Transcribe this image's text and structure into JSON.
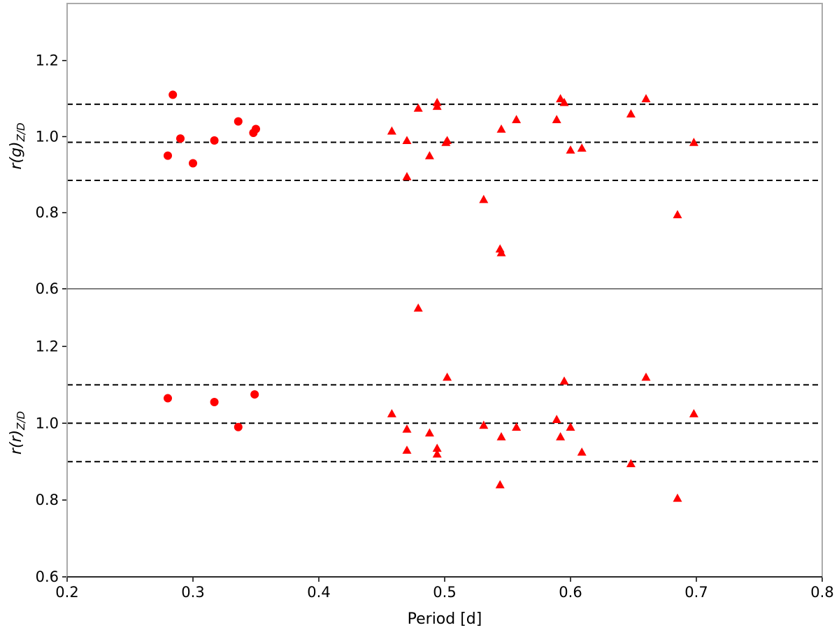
{
  "chart_data": [
    {
      "type": "scatter",
      "panel": "top",
      "xlabel": "",
      "ylabel": "r(g)",
      "ylabel_subscript": "Z/D",
      "xlim": [
        0.2,
        0.8
      ],
      "ylim": [
        0.6,
        1.35
      ],
      "yticks": [
        0.6,
        0.8,
        1.0,
        1.2
      ],
      "yticklabels": [
        "0.6",
        "0.8",
        "1.0",
        "1.2"
      ],
      "grid": false,
      "hlines": [
        0.885,
        0.985,
        1.085
      ],
      "color": "#ff0000",
      "series": [
        {
          "marker": "circle",
          "points": [
            [
              0.28,
              0.95
            ],
            [
              0.284,
              1.11
            ],
            [
              0.29,
              0.995
            ],
            [
              0.3,
              0.93
            ],
            [
              0.317,
              0.99
            ],
            [
              0.336,
              1.04
            ],
            [
              0.348,
              1.01
            ],
            [
              0.35,
              1.02
            ]
          ]
        },
        {
          "marker": "triangle",
          "points": [
            [
              0.458,
              1.015
            ],
            [
              0.47,
              0.99
            ],
            [
              0.47,
              0.895
            ],
            [
              0.479,
              1.075
            ],
            [
              0.488,
              0.95
            ],
            [
              0.494,
              1.08
            ],
            [
              0.494,
              1.09
            ],
            [
              0.501,
              0.985
            ],
            [
              0.502,
              0.99
            ],
            [
              0.531,
              0.835
            ],
            [
              0.544,
              0.705
            ],
            [
              0.545,
              0.695
            ],
            [
              0.545,
              1.02
            ],
            [
              0.557,
              1.045
            ],
            [
              0.589,
              1.045
            ],
            [
              0.592,
              1.1
            ],
            [
              0.595,
              1.09
            ],
            [
              0.6,
              0.965
            ],
            [
              0.609,
              0.97
            ],
            [
              0.648,
              1.06
            ],
            [
              0.66,
              1.1
            ],
            [
              0.685,
              0.795
            ],
            [
              0.698,
              0.985
            ]
          ]
        }
      ]
    },
    {
      "type": "scatter",
      "panel": "bottom",
      "xlabel": "Period [d]",
      "ylabel": "r(r)",
      "ylabel_subscript": "Z/D",
      "xlim": [
        0.2,
        0.8
      ],
      "ylim": [
        0.6,
        1.35
      ],
      "xticks": [
        0.2,
        0.3,
        0.4,
        0.5,
        0.6,
        0.7,
        0.8
      ],
      "xticklabels": [
        "0.2",
        "0.3",
        "0.4",
        "0.5",
        "0.6",
        "0.7",
        "0.8"
      ],
      "yticks": [
        0.6,
        0.8,
        1.0,
        1.2
      ],
      "yticklabels": [
        "0.6",
        "0.8",
        "1.0",
        "1.2"
      ],
      "grid": false,
      "hlines": [
        0.9,
        1.0,
        1.1
      ],
      "color": "#ff0000",
      "series": [
        {
          "marker": "circle",
          "points": [
            [
              0.28,
              1.065
            ],
            [
              0.317,
              1.055
            ],
            [
              0.336,
              0.99
            ],
            [
              0.349,
              1.075
            ]
          ]
        },
        {
          "marker": "triangle",
          "points": [
            [
              0.458,
              1.025
            ],
            [
              0.47,
              0.985
            ],
            [
              0.47,
              0.93
            ],
            [
              0.479,
              1.3
            ],
            [
              0.488,
              0.975
            ],
            [
              0.494,
              0.935
            ],
            [
              0.494,
              0.92
            ],
            [
              0.502,
              1.12
            ],
            [
              0.531,
              0.995
            ],
            [
              0.544,
              0.84
            ],
            [
              0.545,
              0.965
            ],
            [
              0.557,
              0.99
            ],
            [
              0.589,
              1.01
            ],
            [
              0.592,
              0.965
            ],
            [
              0.595,
              1.11
            ],
            [
              0.6,
              0.99
            ],
            [
              0.609,
              0.925
            ],
            [
              0.648,
              0.895
            ],
            [
              0.66,
              1.12
            ],
            [
              0.685,
              0.805
            ],
            [
              0.698,
              1.025
            ]
          ]
        }
      ]
    }
  ]
}
